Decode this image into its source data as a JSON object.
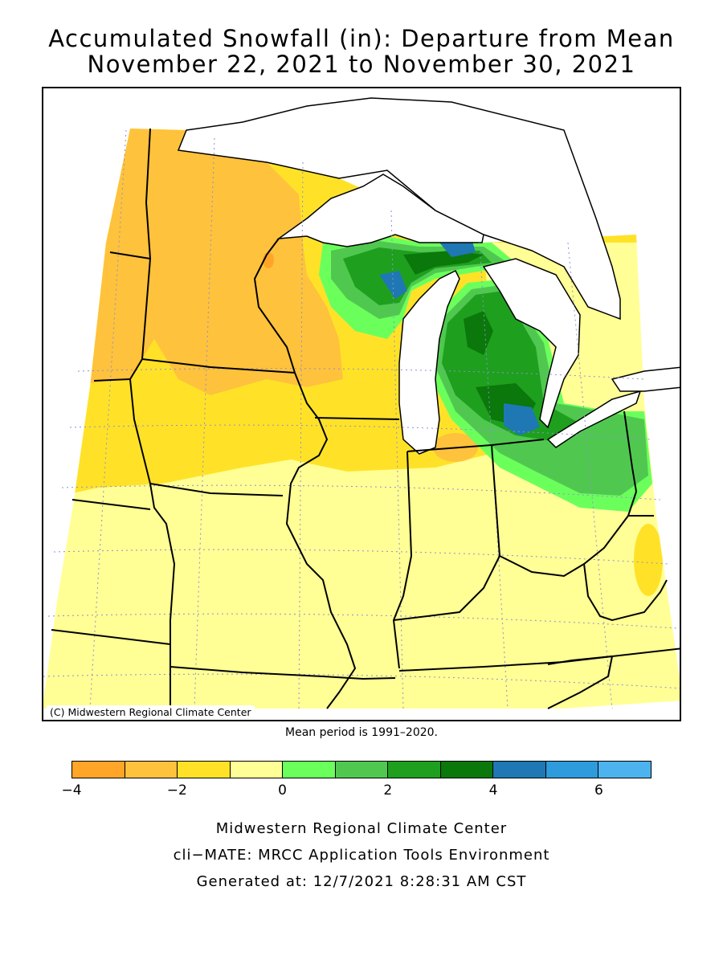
{
  "title": {
    "line1": "Accumulated Snowfall (in): Departure from Mean",
    "line2": "November 22, 2021 to November 30, 2021"
  },
  "map": {
    "region": "Midwest United States and Great Lakes",
    "copyright": "(C) Midwestern Regional Climate Center",
    "mean_note": "Mean period is 1991–2020.",
    "lake_color": "#ffffff",
    "boundary_color": "#000000",
    "graticule_color": "#8f8fd0"
  },
  "legend": {
    "units": "in",
    "bins": [
      {
        "min": -4,
        "max": -3,
        "color": "#ffa528"
      },
      {
        "min": -3,
        "max": -2,
        "color": "#ffc23c"
      },
      {
        "min": -2,
        "max": -1,
        "color": "#ffe228"
      },
      {
        "min": -1,
        "max": 0,
        "color": "#ffff96"
      },
      {
        "min": 0,
        "max": 1,
        "color": "#6bff5c"
      },
      {
        "min": 1,
        "max": 2,
        "color": "#50c850"
      },
      {
        "min": 2,
        "max": 3,
        "color": "#1ea01e"
      },
      {
        "min": 3,
        "max": 4,
        "color": "#0a780a"
      },
      {
        "min": 4,
        "max": 5,
        "color": "#1f78b4"
      },
      {
        "min": 5,
        "max": 6,
        "color": "#2e9bdc"
      },
      {
        "min": 6,
        "max": 7,
        "color": "#4cb3ef"
      }
    ],
    "tick_labels": [
      "−4",
      "−2",
      "0",
      "2",
      "4",
      "6"
    ]
  },
  "footer": {
    "line1": "Midwestern Regional Climate Center",
    "line2": "cli−MATE: MRCC Application Tools Environment",
    "line3": "Generated at: 12/7/2021 8:28:31 AM CST"
  }
}
